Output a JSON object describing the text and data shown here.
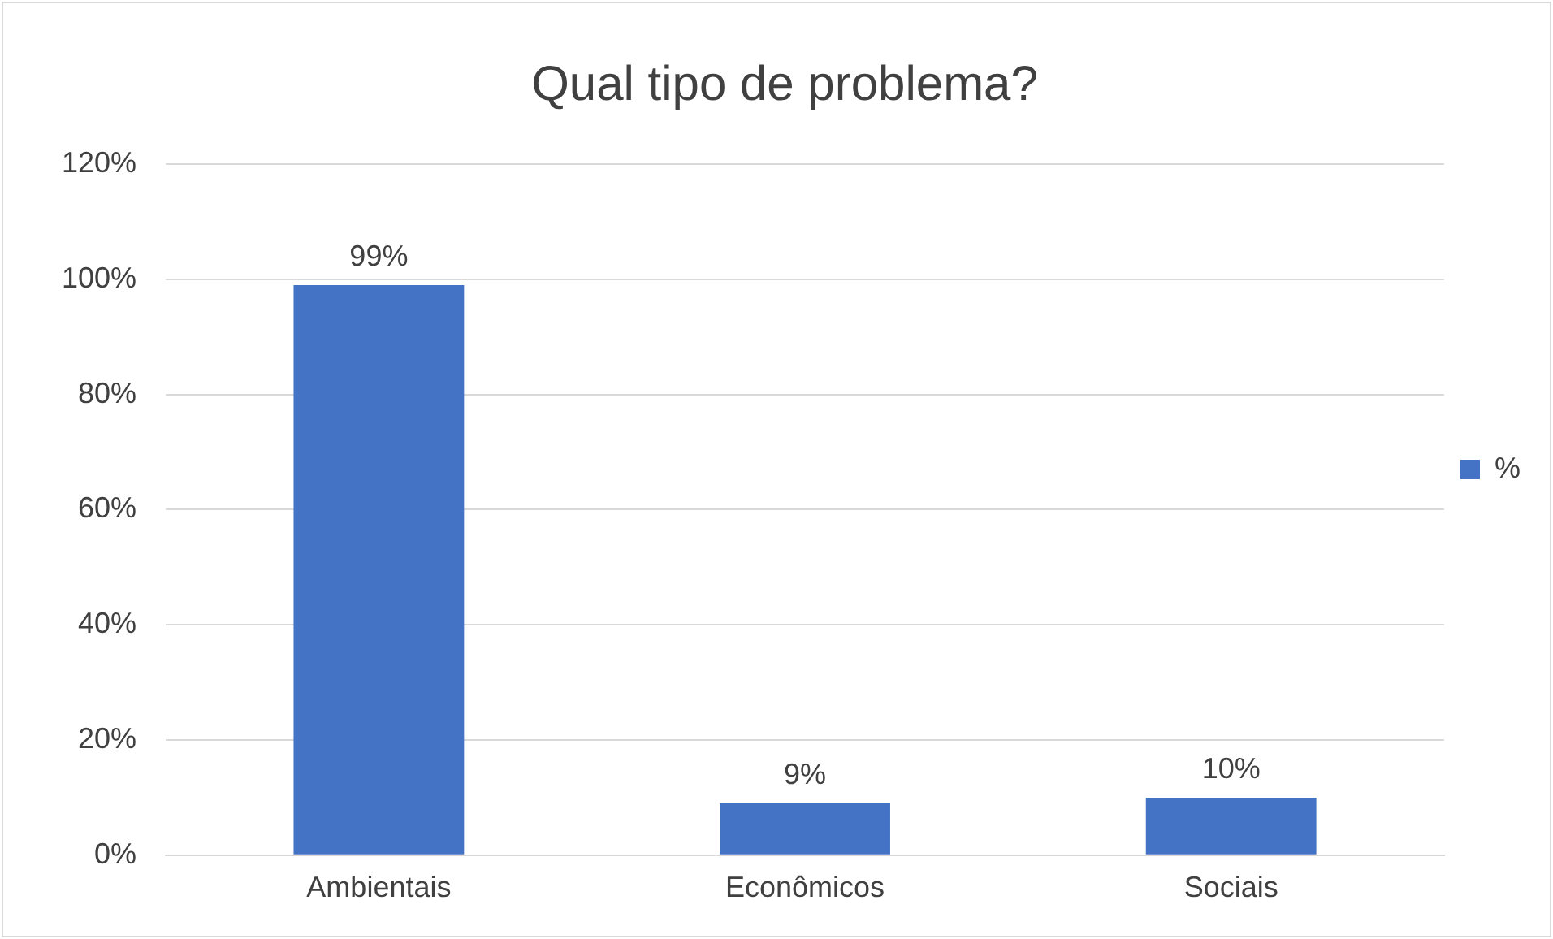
{
  "chart_data": {
    "type": "bar",
    "title": "Qual tipo de problema?",
    "categories": [
      "Ambientais",
      "Econômicos",
      "Sociais"
    ],
    "series": [
      {
        "name": "%",
        "color": "#4472c4",
        "values": [
          99,
          9,
          10
        ],
        "value_labels": [
          "99%",
          "9%",
          "10%"
        ]
      }
    ],
    "ylim": [
      0,
      120
    ],
    "yticks": [
      {
        "value": 0,
        "label": "0%"
      },
      {
        "value": 20,
        "label": "20%"
      },
      {
        "value": 40,
        "label": "40%"
      },
      {
        "value": 60,
        "label": "60%"
      },
      {
        "value": 80,
        "label": "80%"
      },
      {
        "value": 100,
        "label": "100%"
      },
      {
        "value": 120,
        "label": "120%"
      }
    ],
    "grid": "y",
    "legend": "right"
  }
}
